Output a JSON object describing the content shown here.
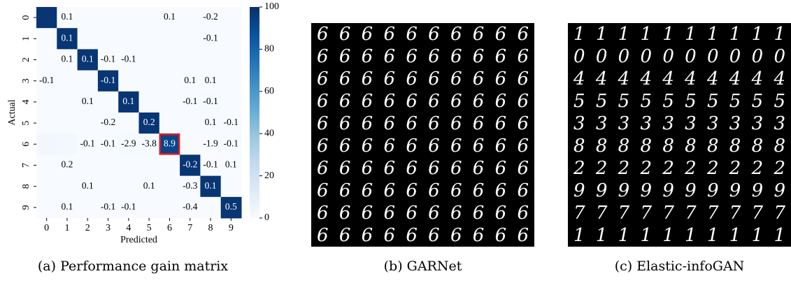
{
  "chart_data": {
    "type": "heatmap",
    "x_label": "Predicted",
    "y_label": "Actual",
    "x_categories": [
      "0",
      "1",
      "2",
      "3",
      "4",
      "5",
      "6",
      "7",
      "8",
      "9"
    ],
    "y_categories": [
      "0",
      "1",
      "2",
      "3",
      "4",
      "5",
      "6",
      "7",
      "8",
      "9"
    ],
    "values": [
      [
        98,
        0,
        0,
        0,
        0,
        0,
        0,
        0,
        0,
        0
      ],
      [
        0,
        98,
        0,
        0,
        0,
        0,
        0,
        0,
        0,
        0
      ],
      [
        0,
        0,
        98,
        0,
        0,
        0,
        0,
        0,
        0,
        0
      ],
      [
        0,
        0,
        0,
        98,
        0,
        0,
        0,
        0,
        0,
        0
      ],
      [
        0,
        0,
        0,
        0,
        98,
        0,
        0,
        0,
        1,
        0
      ],
      [
        0,
        0,
        0,
        0,
        0,
        98,
        0,
        0,
        0,
        0
      ],
      [
        3,
        2,
        0,
        0,
        1,
        1,
        92,
        0,
        0,
        0
      ],
      [
        0,
        0,
        0,
        0,
        0,
        0,
        0,
        98,
        0,
        0
      ],
      [
        0,
        0,
        0,
        0,
        0,
        0,
        0,
        0,
        98,
        0
      ],
      [
        0,
        0,
        0,
        0,
        0,
        0,
        0,
        0,
        0,
        98
      ]
    ],
    "annotations": [
      [
        null,
        0.1,
        null,
        null,
        null,
        null,
        0.1,
        null,
        -0.2,
        null
      ],
      [
        null,
        0.1,
        null,
        null,
        null,
        null,
        null,
        null,
        -0.1,
        null
      ],
      [
        null,
        0.1,
        0.1,
        -0.1,
        -0.1,
        null,
        null,
        null,
        null,
        null
      ],
      [
        -0.1,
        null,
        null,
        -0.1,
        null,
        null,
        null,
        0.1,
        0.1,
        null
      ],
      [
        null,
        null,
        0.1,
        null,
        0.1,
        null,
        null,
        -0.1,
        -0.1,
        null
      ],
      [
        null,
        null,
        null,
        -0.2,
        null,
        0.2,
        null,
        null,
        0.1,
        -0.1
      ],
      [
        null,
        null,
        -0.1,
        -0.1,
        -2.9,
        -3.8,
        8.9,
        null,
        -1.9,
        -0.1
      ],
      [
        null,
        0.2,
        null,
        null,
        null,
        null,
        null,
        -0.2,
        -0.1,
        0.1
      ],
      [
        null,
        null,
        0.1,
        null,
        null,
        0.1,
        null,
        -0.3,
        0.1,
        null
      ],
      [
        null,
        0.1,
        null,
        -0.1,
        -0.1,
        null,
        null,
        -0.4,
        null,
        0.5
      ]
    ],
    "highlight_cell": {
      "row": 6,
      "col": 6
    },
    "clim": [
      0,
      100
    ],
    "cticks": [
      0,
      20,
      40,
      60,
      80,
      100
    ],
    "colormap": [
      "#f7fbff",
      "#deebf7",
      "#c6dbef",
      "#9ecae1",
      "#6baed6",
      "#4292c6",
      "#2171b5",
      "#08519c",
      "#08306b"
    ],
    "caption": "(a) Performance gain matrix"
  },
  "images": [
    {
      "caption": "(b) GARNet",
      "rows": [
        "6666666666",
        "6666666666",
        "6666666666",
        "6666666666",
        "6666666666",
        "6666666666",
        "6666666666",
        "6666666666",
        "6666666666",
        "6666666666"
      ]
    },
    {
      "caption": "(c) Elastic-infoGAN",
      "rows": [
        "1111111111",
        "0000000000",
        "4444444444",
        "5555555555",
        "3333333333",
        "8888888888",
        "2222222222",
        "9999999999",
        "7777777777",
        "1111111111"
      ]
    }
  ]
}
